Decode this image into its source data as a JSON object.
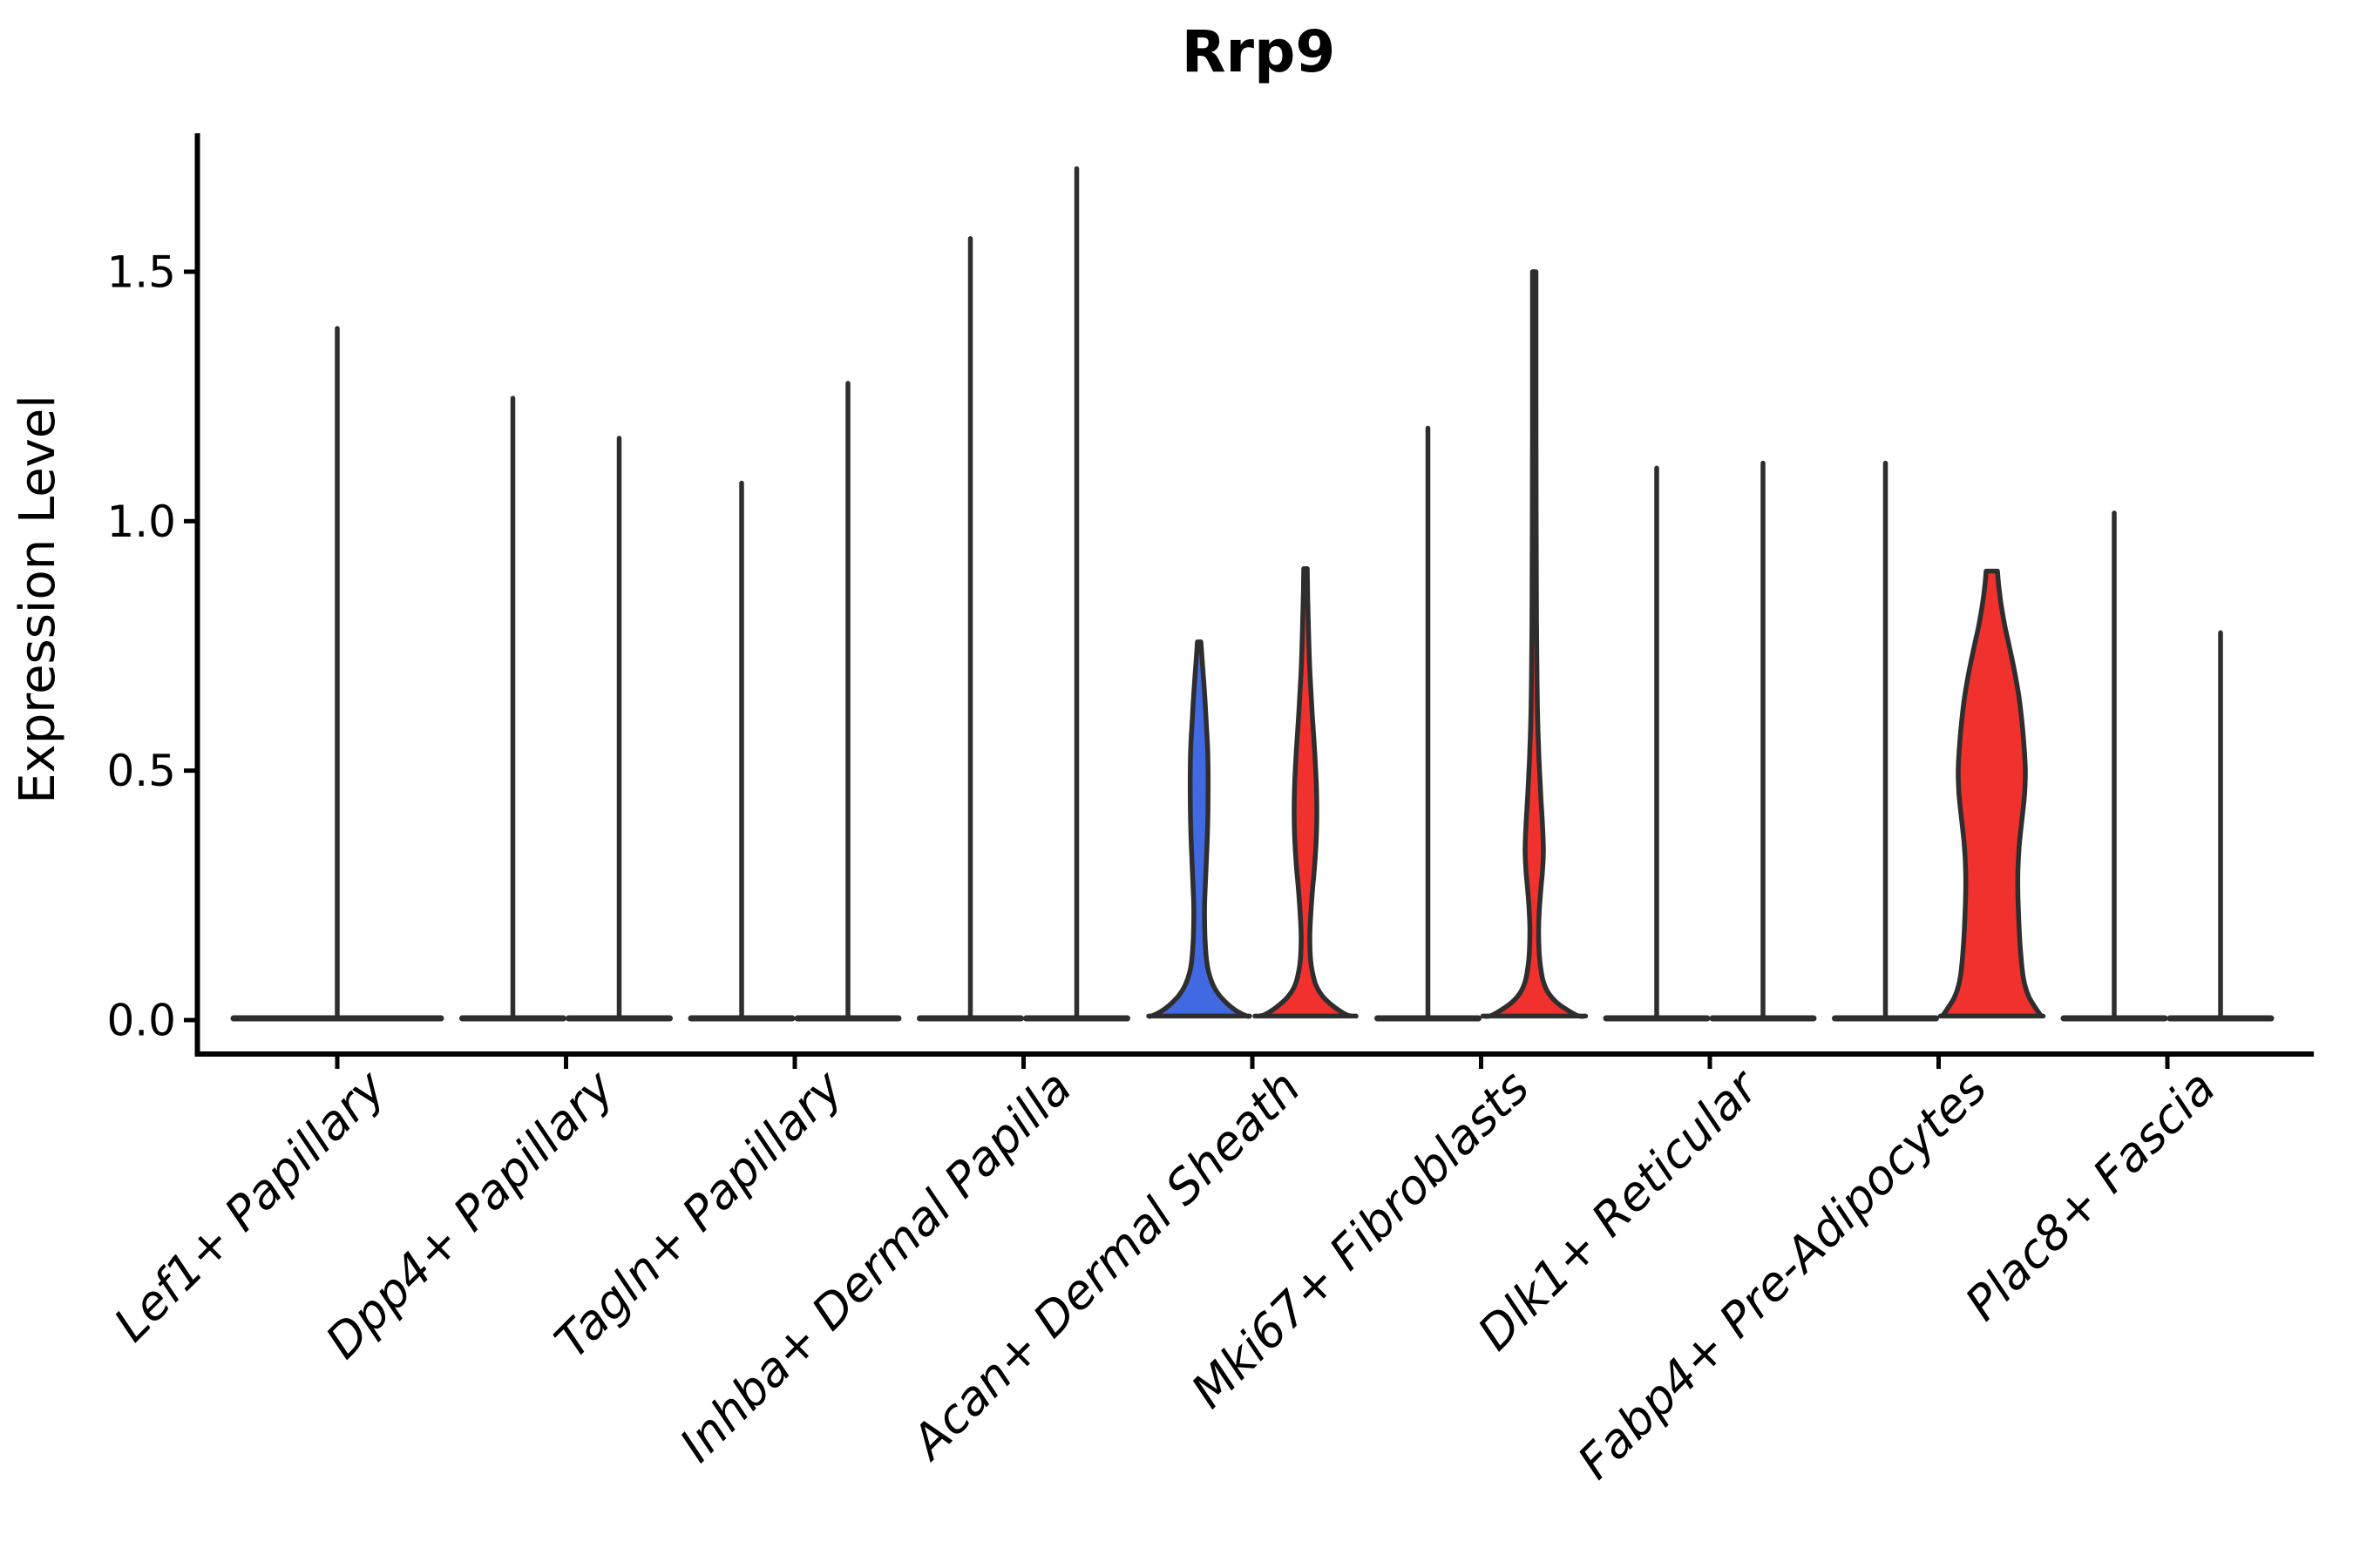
{
  "title": "Rrp9",
  "y_axis": {
    "label": "Expression Level",
    "tick_labels": [
      "0.0",
      "0.5",
      "1.0",
      "1.5"
    ]
  },
  "colors": {
    "blue": "#4169E1",
    "red": "#F0312E",
    "outline": "#2E2E2E",
    "axis": "#000000"
  },
  "chart_data": {
    "type": "violin",
    "title": "Rrp9",
    "xlabel": "",
    "ylabel": "Expression Level",
    "ylim": [
      -0.09,
      1.8
    ],
    "y_ticks": [
      0.0,
      0.5,
      1.0,
      1.5
    ],
    "grid": false,
    "legend_position": "none",
    "categories": [
      "Lef1+ Papillary",
      "Dpp4+ Papillary",
      "Tagln+ Papillary",
      "Inhba+ Dermal Papilla",
      "Acan+ Dermal Sheath",
      "Mki67+ Fibroblasts",
      "Dlk1+ Reticular",
      "Fabp4+ Pre-Adipocytes",
      "Plac8+ Fascia"
    ],
    "groups": [
      {
        "category": "Lef1+ Papillary",
        "violins": [
          {
            "side": "full",
            "fill": "none",
            "max": 1.39
          }
        ]
      },
      {
        "category": "Dpp4+ Papillary",
        "violins": [
          {
            "side": "left",
            "fill": "none",
            "max": 1.25
          },
          {
            "side": "right",
            "fill": "none",
            "max": 1.17
          }
        ]
      },
      {
        "category": "Tagln+ Papillary",
        "violins": [
          {
            "side": "left",
            "fill": "none",
            "max": 1.08
          },
          {
            "side": "right",
            "fill": "none",
            "max": 1.28
          }
        ]
      },
      {
        "category": "Inhba+ Dermal Papilla",
        "violins": [
          {
            "side": "left",
            "fill": "none",
            "max": 1.57
          },
          {
            "side": "right",
            "fill": "none",
            "max": 1.71
          }
        ]
      },
      {
        "category": "Acan+ Dermal Sheath",
        "violins": [
          {
            "side": "left",
            "fill": "blue",
            "max": 0.758,
            "profile": [
              [
                0.758,
                2
              ],
              [
                0.72,
                3.5
              ],
              [
                0.66,
                6
              ],
              [
                0.6,
                8
              ],
              [
                0.54,
                9.8
              ],
              [
                0.47,
                10.3
              ],
              [
                0.41,
                10
              ],
              [
                0.35,
                9
              ],
              [
                0.3,
                7.8
              ],
              [
                0.26,
                6.8
              ],
              [
                0.23,
                6.2
              ],
              [
                0.2,
                6.2
              ],
              [
                0.16,
                6.8
              ],
              [
                0.12,
                8.5
              ],
              [
                0.095,
                11
              ],
              [
                0.07,
                16
              ],
              [
                0.05,
                23
              ],
              [
                0.03,
                34
              ],
              [
                0.015,
                46
              ],
              [
                0.005,
                55
              ],
              [
                0.0,
                58
              ]
            ]
          },
          {
            "side": "right",
            "fill": "red",
            "max": 0.905,
            "profile": [
              [
                0.905,
                2
              ],
              [
                0.85,
                2.5
              ],
              [
                0.78,
                3.5
              ],
              [
                0.7,
                5
              ],
              [
                0.62,
                7.5
              ],
              [
                0.54,
                10.5
              ],
              [
                0.47,
                12.5
              ],
              [
                0.42,
                13
              ],
              [
                0.37,
                12.5
              ],
              [
                0.31,
                10.5
              ],
              [
                0.26,
                8
              ],
              [
                0.21,
                6
              ],
              [
                0.17,
                5
              ],
              [
                0.13,
                5.5
              ],
              [
                0.1,
                7.5
              ],
              [
                0.07,
                12
              ],
              [
                0.045,
                21
              ],
              [
                0.025,
                34
              ],
              [
                0.01,
                48
              ],
              [
                0.0,
                58
              ]
            ]
          }
        ]
      },
      {
        "category": "Mki67+ Fibroblasts",
        "violins": [
          {
            "side": "left",
            "fill": "none",
            "max": 1.19
          },
          {
            "side": "right",
            "fill": "red",
            "max": 1.5,
            "profile": [
              [
                1.5,
                2
              ],
              [
                1.25,
                2
              ],
              [
                1.0,
                2.2
              ],
              [
                0.8,
                2.6
              ],
              [
                0.68,
                3.2
              ],
              [
                0.6,
                4
              ],
              [
                0.52,
                5.5
              ],
              [
                0.45,
                7.5
              ],
              [
                0.39,
                9.5
              ],
              [
                0.34,
                10.5
              ],
              [
                0.3,
                9.5
              ],
              [
                0.26,
                7.5
              ],
              [
                0.22,
                5.8
              ],
              [
                0.18,
                5
              ],
              [
                0.14,
                5.5
              ],
              [
                0.11,
                7
              ],
              [
                0.08,
                10
              ],
              [
                0.055,
                16
              ],
              [
                0.035,
                26
              ],
              [
                0.018,
                40
              ],
              [
                0.007,
                51
              ],
              [
                0.0,
                59
              ]
            ]
          }
        ]
      },
      {
        "category": "Dlk1+ Reticular",
        "violins": [
          {
            "side": "left",
            "fill": "none",
            "max": 1.11
          },
          {
            "side": "right",
            "fill": "none",
            "max": 1.12
          }
        ]
      },
      {
        "category": "Fabp4+ Pre-Adipocytes",
        "violins": [
          {
            "side": "left",
            "fill": "none",
            "max": 1.12
          },
          {
            "side": "right",
            "fill": "red",
            "max": 0.9,
            "flat_top": true,
            "profile": [
              [
                0.9,
                6.5
              ],
              [
                0.87,
                8
              ],
              [
                0.83,
                11
              ],
              [
                0.79,
                15
              ],
              [
                0.75,
                20
              ],
              [
                0.7,
                26
              ],
              [
                0.65,
                31
              ],
              [
                0.6,
                34.5
              ],
              [
                0.55,
                37
              ],
              [
                0.5,
                38.5
              ],
              [
                0.45,
                37.5
              ],
              [
                0.4,
                34.5
              ],
              [
                0.35,
                31.5
              ],
              [
                0.3,
                30
              ],
              [
                0.25,
                30
              ],
              [
                0.2,
                31
              ],
              [
                0.15,
                32.5
              ],
              [
                0.1,
                35
              ],
              [
                0.07,
                38
              ],
              [
                0.045,
                43
              ],
              [
                0.025,
                50
              ],
              [
                0.01,
                56
              ],
              [
                0.0,
                59
              ]
            ]
          }
        ]
      },
      {
        "category": "Plac8+ Fascia",
        "violins": [
          {
            "side": "left",
            "fill": "none",
            "max": 1.02
          },
          {
            "side": "right",
            "fill": "none",
            "max": 0.78
          }
        ]
      }
    ]
  }
}
